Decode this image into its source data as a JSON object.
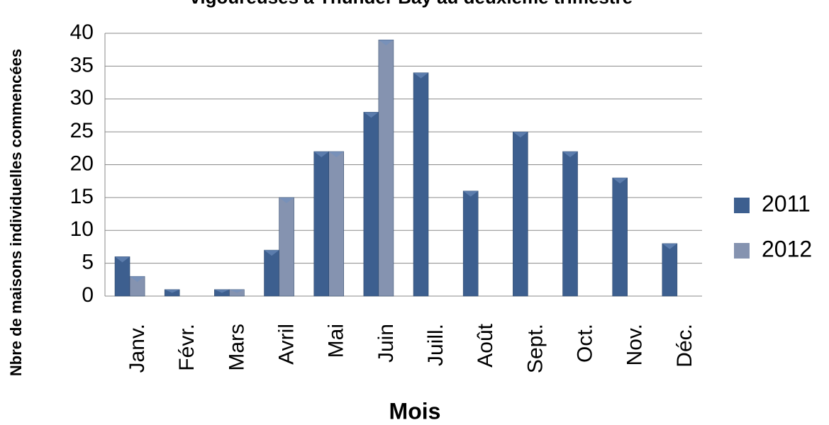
{
  "chart_data": {
    "type": "bar",
    "title": "vigoureuses à Thunder Bay au deuxième trimestre",
    "x_label": "Mois",
    "y_label": "Nbre de maisons individuelles commencées",
    "categories": [
      "Janv.",
      "Févr.",
      "Mars",
      "Avril",
      "Mai",
      "Juin",
      "Juill.",
      "Août",
      "Sept.",
      "Oct.",
      "Nov.",
      "Déc."
    ],
    "series": [
      {
        "name": "2011",
        "color": "#3d5f8f",
        "values": [
          6,
          1,
          1,
          7,
          22,
          28,
          34,
          16,
          25,
          22,
          18,
          8
        ]
      },
      {
        "name": "2012",
        "color": "#8593b0",
        "values": [
          3,
          null,
          1,
          15,
          22,
          39,
          null,
          null,
          null,
          null,
          null,
          null
        ]
      }
    ],
    "ylim": [
      0,
      40
    ],
    "yticks": [
      0,
      5,
      10,
      15,
      20,
      25,
      30,
      35,
      40
    ],
    "grid": true,
    "legend": "right"
  }
}
